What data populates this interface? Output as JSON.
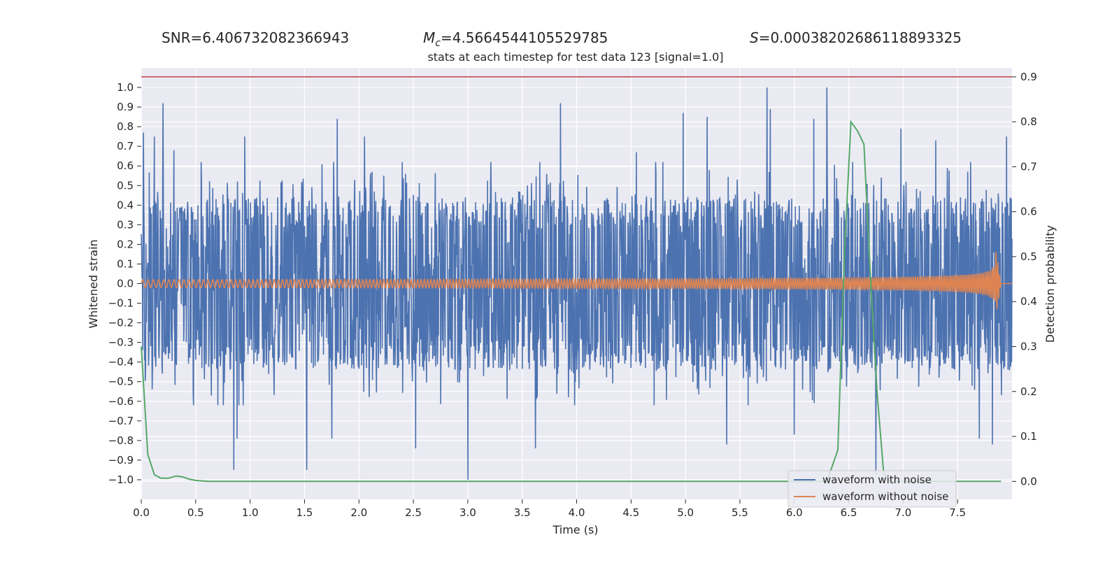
{
  "header": {
    "snr": "SNR=6.406732082366943",
    "mc_symbol": "M",
    "mc_sub": "c",
    "mc_value": "=4.5664544105529785",
    "s_symbol": "S",
    "s_value": "=0.00038202686118893325"
  },
  "chart_data": {
    "type": "line",
    "title": "stats at each timestep for test data 123 [signal=1.0]",
    "xlabel": "Time (s)",
    "ylabel_left": "Whitened strain",
    "ylabel_right": "Detection probability",
    "xlim": [
      0.0,
      8.0
    ],
    "ylim_left": [
      -1.1,
      1.1
    ],
    "ylim_right": [
      -0.04,
      0.92
    ],
    "x_ticks": [
      "0.0",
      "0.5",
      "1.0",
      "1.5",
      "2.0",
      "2.5",
      "3.0",
      "3.5",
      "4.0",
      "4.5",
      "5.0",
      "5.5",
      "6.0",
      "6.5",
      "7.0",
      "7.5"
    ],
    "y_left_ticks": [
      "1.0",
      "0.9",
      "0.8",
      "0.7",
      "0.6",
      "0.5",
      "0.4",
      "0.3",
      "0.2",
      "0.1",
      "0.0",
      "−0.1",
      "−0.2",
      "−0.3",
      "−0.4",
      "−0.5",
      "−0.6",
      "−0.7",
      "−0.8",
      "−0.9",
      "−1.0"
    ],
    "y_right_ticks": [
      "0.9",
      "0.8",
      "0.7",
      "0.6",
      "0.5",
      "0.4",
      "0.3",
      "0.2",
      "0.1",
      "0.0"
    ],
    "threshold": {
      "axis": "right",
      "value": 0.9,
      "color": "#c44e52"
    },
    "grid": true,
    "legend_position": "lower-right",
    "series": [
      {
        "name": "waveform with noise",
        "axis": "left",
        "color": "#4c72b0",
        "noise_envelope": {
          "typical_amplitude": 0.4,
          "min": -1.0,
          "max": 1.0
        },
        "spikes": [
          {
            "x": 0.02,
            "y": 0.77
          },
          {
            "x": 0.12,
            "y": 0.75
          },
          {
            "x": 0.2,
            "y": 0.92
          },
          {
            "x": 0.3,
            "y": 0.68
          },
          {
            "x": 0.85,
            "y": -0.95
          },
          {
            "x": 0.88,
            "y": -0.79
          },
          {
            "x": 0.95,
            "y": 0.75
          },
          {
            "x": 1.52,
            "y": -0.95
          },
          {
            "x": 1.8,
            "y": 0.84
          },
          {
            "x": 1.75,
            "y": -0.79
          },
          {
            "x": 2.05,
            "y": 0.75
          },
          {
            "x": 2.52,
            "y": -0.84
          },
          {
            "x": 3.0,
            "y": -1.0
          },
          {
            "x": 3.85,
            "y": 0.92
          },
          {
            "x": 3.62,
            "y": -0.84
          },
          {
            "x": 4.55,
            "y": 0.67
          },
          {
            "x": 4.98,
            "y": 0.87
          },
          {
            "x": 5.2,
            "y": 0.85
          },
          {
            "x": 5.38,
            "y": -0.82
          },
          {
            "x": 5.75,
            "y": 1.0
          },
          {
            "x": 5.78,
            "y": 0.89
          },
          {
            "x": 6.18,
            "y": 0.84
          },
          {
            "x": 6.3,
            "y": 1.0
          },
          {
            "x": 6.0,
            "y": -0.77
          },
          {
            "x": 6.75,
            "y": -0.97
          },
          {
            "x": 6.98,
            "y": 0.79
          },
          {
            "x": 7.3,
            "y": 0.73
          },
          {
            "x": 7.7,
            "y": -0.79
          },
          {
            "x": 7.82,
            "y": -0.82
          },
          {
            "x": 7.95,
            "y": 0.75
          }
        ]
      },
      {
        "name": "waveform without noise",
        "axis": "left",
        "color": "#dd8452",
        "chirp": {
          "merger_time": 7.85,
          "amplitude_start": 0.02,
          "amplitude_peak": 0.18,
          "cycles_per_second_start": 20,
          "cycles_per_second_end": 60,
          "zero_after": 7.9
        }
      },
      {
        "name": "detection probability",
        "axis": "right",
        "color": "#55a868",
        "x": [
          0.0,
          0.06,
          0.12,
          0.18,
          0.25,
          0.32,
          0.38,
          0.44,
          0.5,
          0.56,
          0.62,
          0.7,
          6.3,
          6.4,
          6.46,
          6.52,
          6.58,
          6.64,
          6.7,
          6.76,
          6.82,
          6.88,
          7.9
        ],
        "y": [
          0.3,
          0.06,
          0.015,
          0.007,
          0.007,
          0.012,
          0.01,
          0.005,
          0.002,
          0.001,
          0.0,
          0.0,
          0.0,
          0.07,
          0.5,
          0.8,
          0.78,
          0.75,
          0.45,
          0.2,
          0.02,
          0.0,
          0.0
        ]
      }
    ]
  }
}
